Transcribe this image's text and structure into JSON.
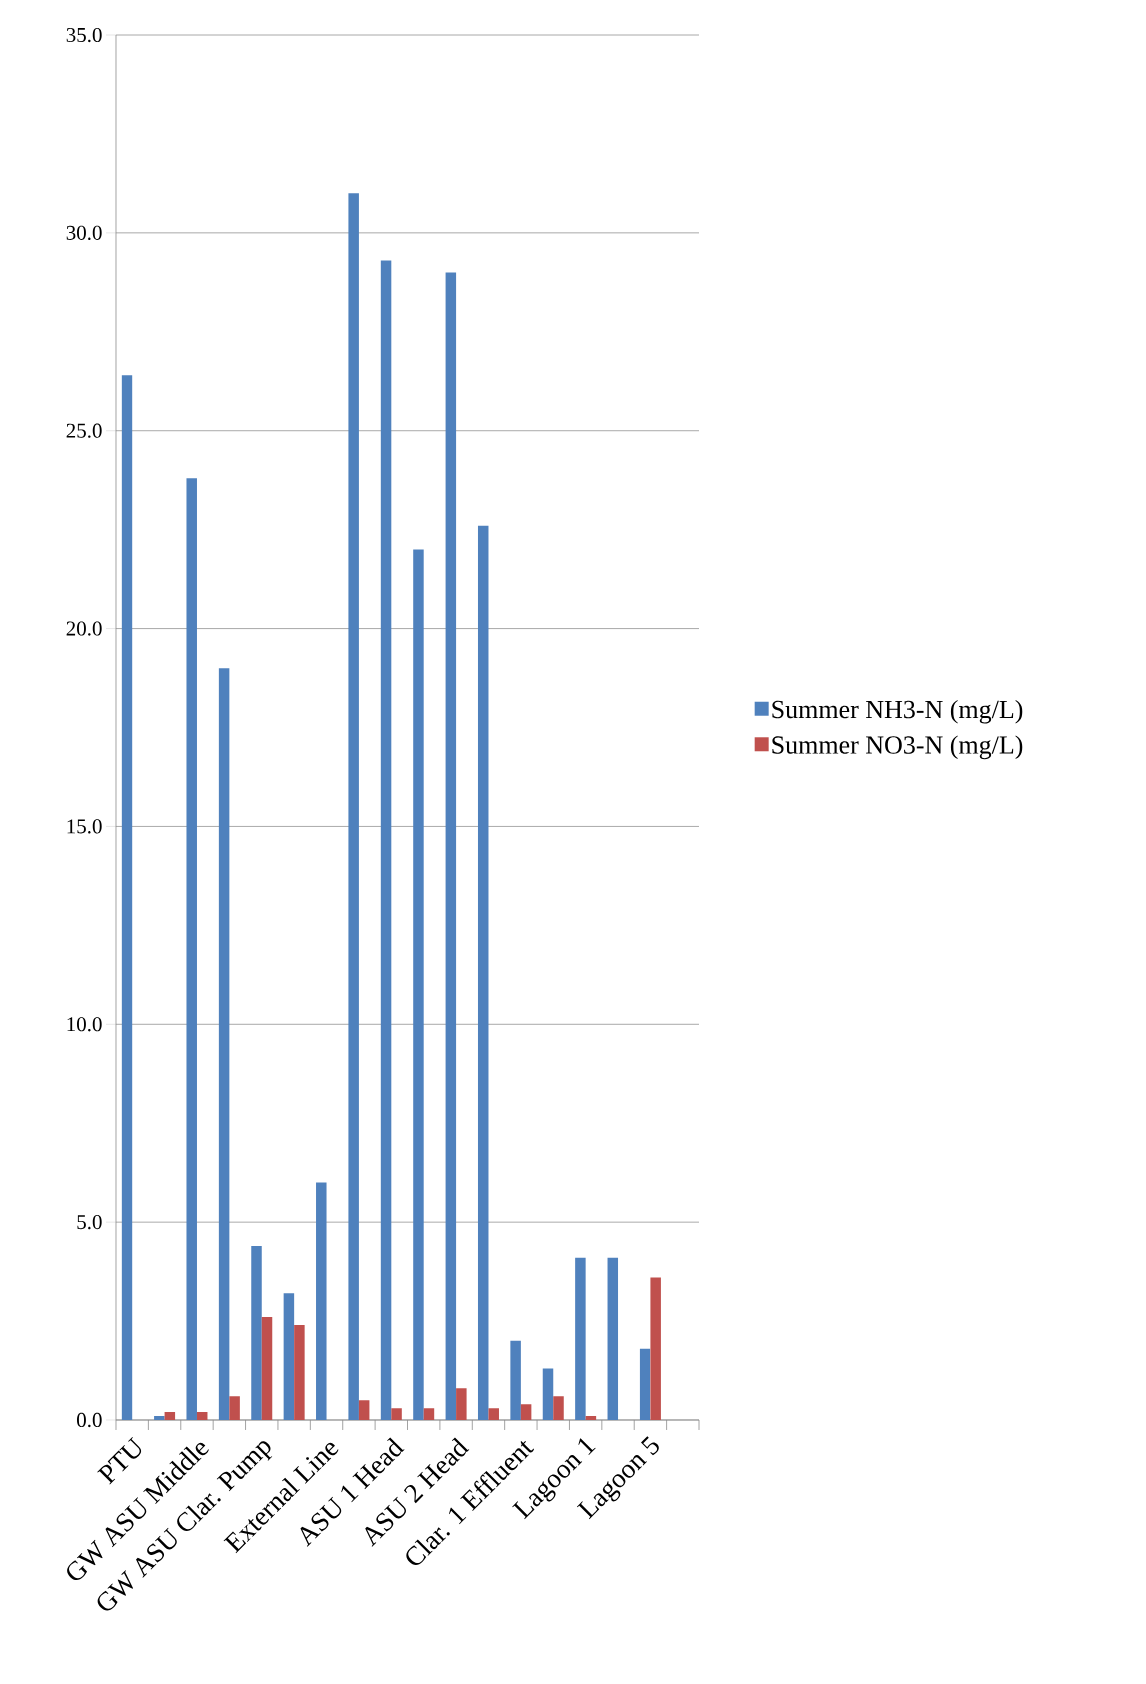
{
  "chart_data": {
    "type": "bar",
    "categories": [
      "PTU",
      null,
      "GW ASU Middle",
      null,
      "GW ASU Clar. Pump",
      null,
      "External Line",
      null,
      "ASU 1 Head",
      null,
      "ASU 2 Head",
      null,
      "Clar. 1 Effluent",
      null,
      "Lagoon 1",
      null,
      "Lagoon 5",
      null
    ],
    "series": [
      {
        "name": "Summer  NH3-N (mg/L)",
        "color": "#4f81bd",
        "values": [
          26.4,
          0.1,
          23.8,
          19.0,
          4.4,
          3.2,
          6.0,
          31.0,
          29.3,
          22.0,
          29.0,
          22.6,
          2.0,
          1.3,
          4.1,
          4.1,
          1.8,
          null
        ]
      },
      {
        "name": "Summer  NO3-N (mg/L)",
        "color": "#c0504d",
        "values": [
          0,
          0.2,
          0.2,
          0.6,
          2.6,
          2.4,
          0,
          0.5,
          0.3,
          0.3,
          0.8,
          0.3,
          0.4,
          0.6,
          0.1,
          0,
          3.6,
          null
        ]
      }
    ],
    "ylim": [
      0,
      35
    ],
    "yticks": [
      {
        "value": 0,
        "label": "0.0"
      },
      {
        "value": 5,
        "label": "5.0"
      },
      {
        "value": 10,
        "label": "10.0"
      },
      {
        "value": 15,
        "label": "15.0"
      },
      {
        "value": 20,
        "label": "20.0"
      },
      {
        "value": 25,
        "label": "25.0"
      },
      {
        "value": 30,
        "label": "30.0"
      },
      {
        "value": 35,
        "label": "35.0"
      }
    ],
    "grid": "y",
    "legend": "right"
  }
}
